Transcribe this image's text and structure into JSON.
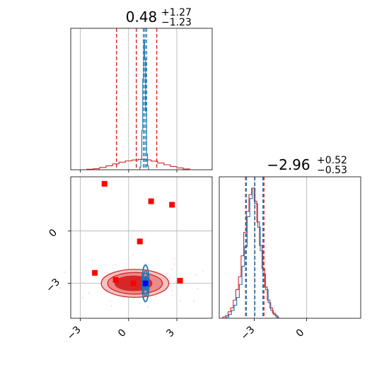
{
  "chart_data": [
    {
      "panel": "top-left",
      "type": "histogram",
      "title": {
        "value": "0.48",
        "upper": "+1.27",
        "lower": "−1.23"
      },
      "xlim": [
        -3.6,
        5.2
      ],
      "grid": true,
      "series": [
        {
          "color": "#1f77b4",
          "style": "step",
          "bin_edges": [
            0.7,
            0.76,
            0.82,
            0.88,
            0.94,
            1.0,
            1.06,
            1.12,
            1.18,
            1.24
          ],
          "heights": [
            0.02,
            0.08,
            0.3,
            0.7,
            1.0,
            0.85,
            0.45,
            0.12,
            0.03
          ]
        },
        {
          "color": "#d62728",
          "style": "step",
          "bin_edges": [
            -2.6,
            -2.2,
            -1.8,
            -1.4,
            -1.0,
            -0.6,
            -0.2,
            0.2,
            0.6,
            1.0,
            1.4,
            1.8,
            2.2,
            2.6,
            3.0,
            3.4,
            3.8
          ],
          "heights": [
            0.004,
            0.008,
            0.018,
            0.03,
            0.045,
            0.058,
            0.068,
            0.075,
            0.08,
            0.076,
            0.066,
            0.052,
            0.038,
            0.025,
            0.014,
            0.006
          ]
        }
      ],
      "vlines": [
        {
          "x": -0.75,
          "color": "#d62728"
        },
        {
          "x": 0.48,
          "color": "#d62728"
        },
        {
          "x": 1.75,
          "color": "#d62728"
        },
        {
          "x": 0.92,
          "color": "#1f77b4"
        },
        {
          "x": 1.02,
          "color": "#1f77b4"
        },
        {
          "x": 1.12,
          "color": "#1f77b4"
        }
      ]
    },
    {
      "panel": "bottom-left",
      "type": "contour-scatter",
      "xlim": [
        -3.6,
        5.2
      ],
      "ylim": [
        -5.0,
        3.1
      ],
      "grid": true,
      "xticks": [
        {
          "value": -3,
          "label": "−3"
        },
        {
          "value": 0,
          "label": "0"
        },
        {
          "value": 3,
          "label": "3"
        }
      ],
      "yticks": [
        {
          "value": 0,
          "label": "0"
        },
        {
          "value": -3,
          "label": "−3"
        }
      ],
      "red_contours": [
        {
          "cx": 0.4,
          "cy": -3.0,
          "rx": 2.1,
          "ry": 0.8,
          "fill": "#f4c2c2"
        },
        {
          "cx": 0.4,
          "cy": -3.0,
          "rx": 1.7,
          "ry": 0.62,
          "fill": "#ea8a8a"
        },
        {
          "cx": 0.3,
          "cy": -3.0,
          "rx": 1.15,
          "ry": 0.42,
          "fill": "#d62728"
        }
      ],
      "blue_contours": [
        {
          "cx": 1.05,
          "cy": -3.0,
          "rx": 0.22,
          "ry": 1.05
        },
        {
          "cx": 1.05,
          "cy": -3.0,
          "rx": 0.15,
          "ry": 0.72
        },
        {
          "cx": 1.05,
          "cy": -3.0,
          "rx": 0.09,
          "ry": 0.4
        }
      ],
      "red_markers": [
        {
          "x": -1.5,
          "y": 2.7
        },
        {
          "x": 1.4,
          "y": 1.7
        },
        {
          "x": 2.7,
          "y": 1.5
        },
        {
          "x": 0.7,
          "y": -0.6
        },
        {
          "x": -2.1,
          "y": -2.4
        },
        {
          "x": -0.8,
          "y": -2.8
        },
        {
          "x": 0.3,
          "y": -3.0
        },
        {
          "x": 3.2,
          "y": -2.85
        }
      ],
      "blue_marker": {
        "x": 1.05,
        "y": -3.0
      },
      "colors": {
        "red": "#ff0000",
        "blue": "#0000ff"
      }
    },
    {
      "panel": "bottom-right",
      "type": "histogram",
      "title": {
        "value": "−2.96",
        "upper": "+0.52",
        "lower": "−0.53"
      },
      "xlim": [
        -5.0,
        3.1
      ],
      "grid": true,
      "xticks": [
        {
          "value": -3,
          "label": "−3"
        },
        {
          "value": 0,
          "label": "0"
        }
      ],
      "series": [
        {
          "color": "#1f77b4",
          "style": "step",
          "bin_edges": [
            -4.6,
            -4.45,
            -4.3,
            -4.15,
            -4.0,
            -3.85,
            -3.7,
            -3.55,
            -3.4,
            -3.25,
            -3.1,
            -2.95,
            -2.8,
            -2.65,
            -2.5,
            -2.35,
            -2.2,
            -2.05,
            -1.9,
            -1.75,
            -1.6
          ],
          "heights": [
            0.01,
            0.03,
            0.06,
            0.1,
            0.16,
            0.26,
            0.4,
            0.55,
            0.78,
            0.92,
            1.0,
            0.88,
            0.7,
            0.52,
            0.34,
            0.22,
            0.12,
            0.06,
            0.03,
            0.01
          ]
        },
        {
          "color": "#d62728",
          "style": "step",
          "bin_edges": [
            -4.8,
            -4.65,
            -4.5,
            -4.35,
            -4.2,
            -4.05,
            -3.9,
            -3.75,
            -3.6,
            -3.45,
            -3.3,
            -3.15,
            -3.0,
            -2.85,
            -2.7,
            -2.55,
            -2.4,
            -2.25,
            -2.1,
            -1.95,
            -1.8,
            -1.65
          ],
          "heights": [
            0.01,
            0.02,
            0.05,
            0.08,
            0.14,
            0.22,
            0.32,
            0.48,
            0.66,
            0.82,
            0.95,
            1.0,
            0.9,
            0.74,
            0.56,
            0.38,
            0.24,
            0.14,
            0.08,
            0.04,
            0.02
          ]
        }
      ],
      "vlines": [
        {
          "x": -3.49,
          "color": "#d62728"
        },
        {
          "x": -2.96,
          "color": "#d62728"
        },
        {
          "x": -2.44,
          "color": "#d62728"
        },
        {
          "x": -3.45,
          "color": "#1f77b4"
        },
        {
          "x": -2.96,
          "color": "#1f77b4"
        },
        {
          "x": -2.5,
          "color": "#1f77b4"
        }
      ]
    }
  ]
}
